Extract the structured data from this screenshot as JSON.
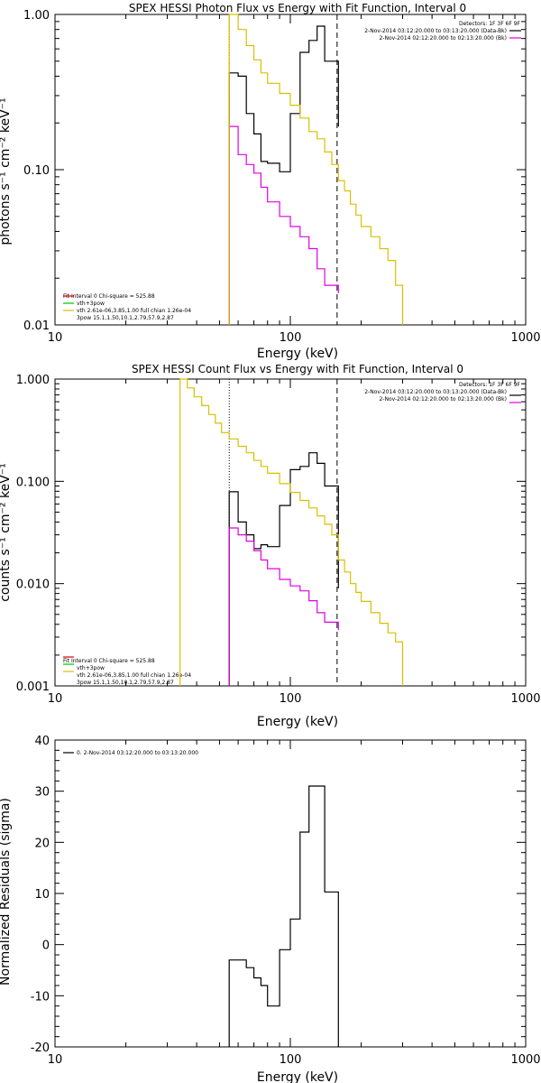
{
  "chart_data": [
    {
      "type": "line",
      "title": "SPEX HESSI Photon Flux vs Energy with Fit Function, Interval 0",
      "xlabel": "Energy (keV)",
      "ylabel": "photons s⁻¹ cm⁻² keV⁻¹",
      "xscale": "log",
      "yscale": "log",
      "xlim": [
        10,
        1000
      ],
      "ylim": [
        0.01,
        1.0
      ],
      "xticks": [
        10,
        100,
        1000
      ],
      "xtick_labels": [
        "10",
        "100",
        "1000"
      ],
      "yticks": [
        0.01,
        0.1,
        1.0
      ],
      "ytick_labels": [
        "0.01",
        "0.10",
        "1.00"
      ],
      "legend_topright": [
        "Detectors: 1F 3F 6F 9F",
        "2-Nov-2014 03:12:20.000 to 03:13:20.000 (Data-Bk)",
        "2-Nov-2014 02:12:20.000 to 02:13:20.000 (Bk)"
      ],
      "legend_topright_colors": [
        "",
        "#000000",
        "#e000e0"
      ],
      "legend_bottomleft": [
        "Fit Interval 0   Chi-square = 525.88",
        "vth+3pow",
        "vth 2.61e-06,3.85,1.00  full chian 1.26e-04",
        "3pow 15.1,1.50,10.1,2.79,57.9,2.87"
      ],
      "legend_bottomleft_colors": [
        "#000000",
        "#e00000",
        "#00c000",
        "#d8c000"
      ],
      "vlines": [
        {
          "x": 55,
          "style": "dotted"
        },
        {
          "x": 158,
          "style": "dashed"
        }
      ],
      "series": [
        {
          "name": "Data-Bk",
          "color": "#000000",
          "edges": [
            55,
            60,
            65,
            70,
            75,
            80,
            90,
            100,
            110,
            120,
            130,
            140,
            160
          ],
          "values": [
            0.42,
            0.4,
            0.23,
            0.17,
            0.113,
            0.11,
            0.097,
            0.23,
            0.57,
            0.68,
            0.84,
            0.5,
            0.19
          ]
        },
        {
          "name": "Bk",
          "color": "#e000e0",
          "edges": [
            55,
            60,
            65,
            70,
            75,
            80,
            90,
            100,
            110,
            120,
            130,
            140,
            160
          ],
          "values": [
            0.19,
            0.125,
            0.108,
            0.095,
            0.077,
            0.062,
            0.05,
            0.043,
            0.037,
            0.031,
            0.023,
            0.018,
            0.016
          ]
        },
        {
          "name": "Fit",
          "color": "#d8c000",
          "edges": [
            55,
            60,
            65,
            70,
            75,
            80,
            90,
            100,
            110,
            120,
            130,
            140,
            150,
            160,
            170,
            180,
            190,
            200,
            220,
            240,
            260,
            280,
            300
          ],
          "values": [
            1.0,
            0.8,
            0.63,
            0.51,
            0.42,
            0.36,
            0.31,
            0.26,
            0.215,
            0.176,
            0.158,
            0.13,
            0.108,
            0.085,
            0.073,
            0.06,
            0.051,
            0.043,
            0.037,
            0.031,
            0.026,
            0.018
          ]
        }
      ]
    },
    {
      "type": "line",
      "title": "SPEX HESSI Count Flux vs Energy with Fit Function, Interval 0",
      "xlabel": "Energy (keV)",
      "ylabel": "counts s⁻¹ cm⁻² keV⁻¹",
      "xscale": "log",
      "yscale": "log",
      "xlim": [
        10,
        1000
      ],
      "ylim": [
        0.001,
        1.0
      ],
      "xticks": [
        10,
        100,
        1000
      ],
      "xtick_labels": [
        "10",
        "100",
        "1000"
      ],
      "yticks": [
        0.001,
        0.01,
        0.1,
        1.0
      ],
      "ytick_labels": [
        "0.001",
        "0.010",
        "0.100",
        "1.000"
      ],
      "legend_topright": [
        "Detectors: 1F 3F 6F 9F",
        "2-Nov-2014 03:12:20.000 to 03:13:20.000 (Data-Bk)",
        "2-Nov-2014 02:12:20.000 to 02:13:20.000 (Bk)"
      ],
      "legend_topright_colors": [
        "",
        "#000000",
        "#e000e0"
      ],
      "legend_bottomleft": [
        "Fit Interval 0   Chi-square = 525.88",
        "vth+3pow",
        "vth 2.61e-06,3.85,1.00  full chian 1.26e-04",
        "3pow 15.1,1.50,10.1,2.79,57.9,2.87"
      ],
      "legend_bottomleft_colors": [
        "#000000",
        "#e00000",
        "#00c000",
        "#d8c000"
      ],
      "vlines": [
        {
          "x": 55,
          "style": "dotted"
        },
        {
          "x": 158,
          "style": "dashed"
        }
      ],
      "series": [
        {
          "name": "Data-Bk",
          "color": "#000000",
          "edges": [
            55,
            60,
            65,
            70,
            75,
            80,
            90,
            100,
            110,
            120,
            130,
            140,
            160
          ],
          "values": [
            0.079,
            0.04,
            0.03,
            0.022,
            0.024,
            0.023,
            0.058,
            0.13,
            0.14,
            0.19,
            0.15,
            0.09,
            0.009
          ]
        },
        {
          "name": "Bk",
          "color": "#e000e0",
          "edges": [
            55,
            60,
            65,
            70,
            75,
            80,
            90,
            100,
            110,
            120,
            130,
            140,
            160
          ],
          "values": [
            0.035,
            0.03,
            0.026,
            0.021,
            0.017,
            0.014,
            0.011,
            0.0095,
            0.0085,
            0.0068,
            0.0052,
            0.0042,
            0.0035
          ]
        },
        {
          "name": "Fit",
          "color": "#d8c000",
          "edges": [
            34,
            36.5,
            39,
            42,
            45,
            48,
            51,
            55,
            60,
            65,
            70,
            75,
            80,
            90,
            100,
            110,
            120,
            130,
            140,
            150,
            160,
            170,
            180,
            190,
            200,
            220,
            240,
            260,
            280,
            300
          ],
          "values": [
            1.0,
            0.82,
            0.67,
            0.55,
            0.45,
            0.37,
            0.3,
            0.26,
            0.22,
            0.19,
            0.16,
            0.14,
            0.12,
            0.095,
            0.078,
            0.065,
            0.055,
            0.046,
            0.038,
            0.03,
            0.017,
            0.013,
            0.01,
            0.0082,
            0.0067,
            0.0052,
            0.0041,
            0.0033,
            0.0027
          ]
        }
      ]
    },
    {
      "type": "line",
      "title": "",
      "xlabel": "Energy (keV)",
      "ylabel": "Normalized Residuals (sigma)",
      "xscale": "log",
      "yscale": "linear",
      "xlim": [
        10,
        1000
      ],
      "ylim": [
        -20,
        40
      ],
      "xticks": [
        10,
        100,
        1000
      ],
      "xtick_labels": [
        "10",
        "100",
        "1000"
      ],
      "yticks": [
        -20,
        -10,
        0,
        10,
        20,
        30,
        40
      ],
      "ytick_labels": [
        "-20",
        "-10",
        "0",
        "10",
        "20",
        "30",
        "40"
      ],
      "legend_topleft": [
        "0.  2-Nov-2014 03:12:20.000 to 03:13:20.000"
      ],
      "series": [
        {
          "name": "0.  2-Nov-2014 03:12:20.000 to 03:13:20.000",
          "color": "#000000",
          "edges": [
            55,
            60,
            65,
            70,
            75,
            80,
            90,
            100,
            110,
            120,
            130,
            140,
            160
          ],
          "values": [
            -3,
            -3,
            -4.5,
            -6.5,
            -8,
            -12,
            -1,
            5,
            22,
            31,
            31,
            10.3
          ]
        }
      ]
    }
  ]
}
